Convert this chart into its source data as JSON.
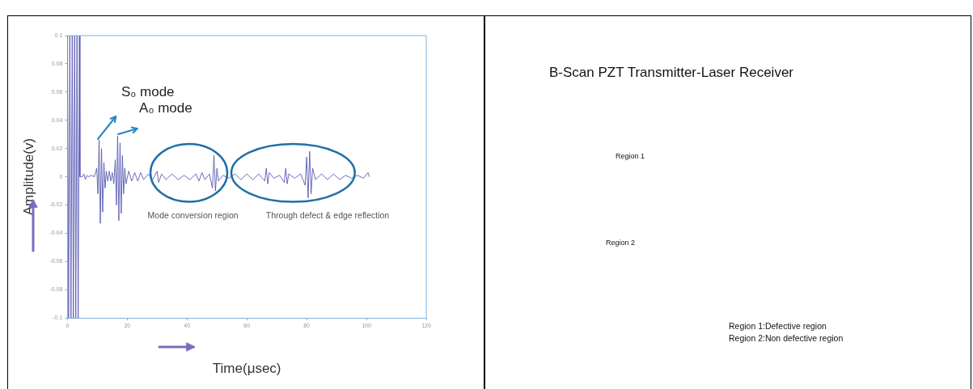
{
  "chart_data": [
    {
      "type": "line",
      "xlabel": "Time(μsec)",
      "ylabel": "Amplitude(v)",
      "x": [
        0,
        0.4,
        0.8,
        1.2,
        1.6,
        2,
        2.4,
        2.8,
        3.2,
        3.6,
        4,
        4.2,
        5,
        5.5,
        6,
        6.5,
        7,
        8,
        9,
        9.8,
        10.2,
        10.6,
        11,
        11.4,
        11.8,
        12.2,
        12.6,
        13,
        13.5,
        14,
        14.5,
        15,
        15.5,
        16,
        16.4,
        16.8,
        17.2,
        17.6,
        18,
        18.4,
        18.8,
        19.2,
        19.6,
        20.5,
        21.5,
        22.5,
        23.5,
        24.5,
        25.5,
        27,
        28.5,
        30,
        30.5,
        31.5,
        33,
        35,
        37,
        39,
        41,
        43,
        44,
        45,
        46,
        47.5,
        48.5,
        49,
        49.5,
        50,
        50.5,
        52,
        54,
        56,
        58,
        60,
        62,
        64,
        66,
        66.5,
        67,
        67.5,
        69,
        71,
        72.5,
        73,
        73.5,
        74,
        76,
        78,
        79.5,
        80,
        80.5,
        81,
        81.5,
        82,
        83,
        85,
        87,
        89,
        91,
        93,
        95,
        97,
        99,
        100.5,
        101
      ],
      "series": [
        {
          "color": "#5a5ab4",
          "values": [
            0.1,
            -0.1,
            0.1,
            -0.1,
            0.1,
            -0.1,
            0.1,
            -0.1,
            0.1,
            -0.1,
            0.1,
            0,
            0,
            0.002,
            -0.002,
            0.001,
            0,
            0.001,
            0,
            0.006,
            -0.012,
            0.026,
            -0.033,
            0.02,
            -0.025,
            0.01,
            -0.008,
            0.004,
            -0.003,
            0.004,
            -0.003,
            0.003,
            -0.005,
            0.012,
            -0.02,
            0.029,
            -0.031,
            0.024,
            -0.026,
            0.015,
            -0.012,
            0.006,
            -0.005,
            0.004,
            -0.003,
            0.003,
            -0.003,
            0.003,
            -0.002,
            0.002,
            -0.002,
            0.004,
            -0.004,
            0.002,
            -0.002,
            0.002,
            -0.002,
            0.001,
            -0.002,
            0.002,
            -0.003,
            0.003,
            -0.002,
            0.002,
            -0.008,
            0.015,
            -0.01,
            0.006,
            -0.003,
            0.001,
            -0.001,
            0.002,
            -0.002,
            0.002,
            -0.002,
            0.002,
            -0.003,
            0.006,
            -0.005,
            0.003,
            -0.001,
            0.001,
            -0.004,
            0.006,
            -0.005,
            0.002,
            -0.001,
            0.002,
            -0.006,
            0.014,
            -0.015,
            0.018,
            -0.012,
            0.006,
            -0.002,
            0.002,
            -0.002,
            0.002,
            -0.002,
            0.001,
            -0.001,
            0.001,
            -0.001,
            0.003,
            0
          ]
        }
      ],
      "xlim": [
        0,
        120
      ],
      "xticks": [
        0,
        20,
        40,
        60,
        80,
        100,
        120
      ],
      "ylim": [
        -0.1,
        0.1
      ],
      "yticks": [
        -0.1,
        -0.08,
        -0.06,
        -0.04,
        -0.02,
        0,
        0.02,
        0.04,
        0.06,
        0.08,
        0.1
      ],
      "grid": false,
      "legend": false,
      "marker": "none",
      "line_style": "solid",
      "annotations": [
        "S₀ mode",
        "A₀ mode",
        "Mode conversion region",
        "Through defect & edge reflection"
      ]
    },
    {
      "type": "other",
      "title": "B-Scan PZT Transmitter-Laser Receiver",
      "annotations": [
        "Region 1",
        "Region 2",
        "Region 1:Defective region",
        "Region 2:Non defective region"
      ]
    }
  ]
}
